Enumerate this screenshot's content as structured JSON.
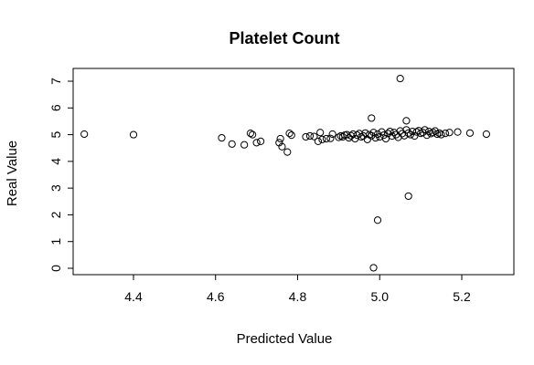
{
  "chart_data": {
    "type": "scatter",
    "title": "Platelet Count",
    "xlabel": "Predicted Value",
    "ylabel": "Real Value",
    "xlim": [
      4.28,
      5.26
    ],
    "ylim": [
      0,
      7.1
    ],
    "x_ticks": [
      4.4,
      4.6,
      4.8,
      5.0,
      5.2
    ],
    "x_tick_labels": [
      "4.4",
      "4.6",
      "4.8",
      "5.0",
      "5.2"
    ],
    "y_ticks": [
      0,
      1,
      2,
      3,
      4,
      5,
      6,
      7
    ],
    "y_tick_labels": [
      "0",
      "1",
      "2",
      "3",
      "4",
      "5",
      "6",
      "7"
    ],
    "grid": false,
    "marker": "open-circle",
    "colors": {
      "points": "#000000",
      "axes": "#000000",
      "background": "#ffffff"
    },
    "points": [
      [
        4.28,
        5.02
      ],
      [
        4.4,
        5.0
      ],
      [
        4.615,
        4.88
      ],
      [
        4.64,
        4.65
      ],
      [
        4.67,
        4.62
      ],
      [
        4.685,
        5.05
      ],
      [
        4.69,
        5.0
      ],
      [
        4.7,
        4.7
      ],
      [
        4.71,
        4.75
      ],
      [
        4.755,
        4.7
      ],
      [
        4.758,
        4.85
      ],
      [
        4.762,
        4.55
      ],
      [
        4.775,
        4.35
      ],
      [
        4.78,
        5.05
      ],
      [
        4.785,
        4.98
      ],
      [
        4.82,
        4.92
      ],
      [
        4.83,
        4.95
      ],
      [
        4.84,
        4.93
      ],
      [
        4.85,
        4.75
      ],
      [
        4.855,
        5.08
      ],
      [
        4.86,
        4.82
      ],
      [
        4.87,
        4.85
      ],
      [
        4.88,
        4.86
      ],
      [
        4.885,
        5.02
      ],
      [
        4.9,
        4.9
      ],
      [
        4.905,
        4.95
      ],
      [
        4.91,
        4.92
      ],
      [
        4.915,
        4.98
      ],
      [
        4.92,
        5.0
      ],
      [
        4.925,
        4.88
      ],
      [
        4.93,
        4.96
      ],
      [
        4.935,
        5.02
      ],
      [
        4.94,
        4.85
      ],
      [
        4.945,
        4.98
      ],
      [
        4.95,
        5.04
      ],
      [
        4.955,
        4.92
      ],
      [
        4.96,
        4.95
      ],
      [
        4.965,
        5.06
      ],
      [
        4.97,
        4.82
      ],
      [
        4.975,
        5.0
      ],
      [
        4.98,
        4.96
      ],
      [
        4.985,
        5.08
      ],
      [
        4.99,
        4.88
      ],
      [
        4.995,
        5.02
      ],
      [
        5.0,
        4.92
      ],
      [
        5.005,
        5.1
      ],
      [
        5.01,
        4.98
      ],
      [
        5.015,
        4.85
      ],
      [
        5.02,
        5.04
      ],
      [
        5.025,
        5.12
      ],
      [
        5.03,
        4.95
      ],
      [
        5.035,
        5.08
      ],
      [
        5.04,
        5.0
      ],
      [
        5.045,
        4.9
      ],
      [
        5.05,
        5.14
      ],
      [
        5.055,
        5.04
      ],
      [
        5.06,
        4.96
      ],
      [
        5.065,
        5.18
      ],
      [
        5.07,
        5.06
      ],
      [
        5.075,
        5.0
      ],
      [
        5.08,
        5.12
      ],
      [
        5.085,
        4.95
      ],
      [
        5.09,
        5.1
      ],
      [
        5.095,
        5.15
      ],
      [
        5.1,
        5.05
      ],
      [
        5.105,
        5.08
      ],
      [
        5.11,
        5.18
      ],
      [
        5.115,
        4.98
      ],
      [
        5.12,
        5.12
      ],
      [
        5.125,
        5.04
      ],
      [
        5.13,
        5.08
      ],
      [
        5.135,
        5.14
      ],
      [
        5.14,
        5.02
      ],
      [
        5.145,
        5.06
      ],
      [
        5.15,
        5.0
      ],
      [
        5.16,
        5.05
      ],
      [
        5.17,
        5.08
      ],
      [
        5.19,
        5.1
      ],
      [
        5.22,
        5.06
      ],
      [
        5.26,
        5.02
      ],
      [
        4.98,
        5.62
      ],
      [
        5.05,
        7.1
      ],
      [
        5.065,
        5.52
      ],
      [
        5.07,
        2.7
      ],
      [
        4.995,
        1.8
      ],
      [
        4.985,
        0.02
      ]
    ]
  }
}
